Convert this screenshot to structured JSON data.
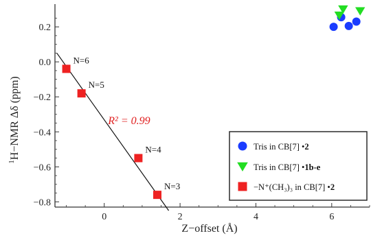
{
  "chart_data": {
    "type": "scatter",
    "xlabel": "Z−offset (Å)",
    "ylabel_prefix": "1",
    "ylabel_main": "H−NMR Δδ (ppm)",
    "xlim": [
      -1.3,
      7.0
    ],
    "ylim": [
      -0.83,
      0.33
    ],
    "x_ticks": [
      0,
      2,
      4,
      6
    ],
    "y_ticks": [
      0.2,
      0.0,
      -0.2,
      -0.4,
      -0.6,
      -0.8
    ],
    "x_tick_labels": [
      "0",
      "2",
      "4",
      "6"
    ],
    "y_tick_labels": [
      "0.2",
      "0.0",
      "−0.2",
      "−0.4",
      "−0.6",
      "−0.8"
    ],
    "grid": false,
    "legend_position": "bottom-right",
    "series": [
      {
        "name_main": "Tris in CB[7] •",
        "name_bold": "2",
        "marker": "circle",
        "color": "#1a3cff",
        "points": [
          [
            6.05,
            0.2
          ],
          [
            6.25,
            0.255
          ],
          [
            6.45,
            0.205
          ],
          [
            6.65,
            0.23
          ]
        ]
      },
      {
        "name_main": "Tris in CB[7] •",
        "name_bold": "1b-e",
        "marker": "triangle-down",
        "color": "#22dd22",
        "points": [
          [
            6.2,
            0.265
          ],
          [
            6.3,
            0.3
          ],
          [
            6.75,
            0.29
          ]
        ]
      },
      {
        "name_main": "−N⁺(CH₃)₃ in CB[7] •",
        "name_bold": "2",
        "marker": "square",
        "color": "#ee2222",
        "points": [
          [
            -1.0,
            -0.04
          ],
          [
            -0.6,
            -0.18
          ],
          [
            0.9,
            -0.55
          ],
          [
            1.4,
            -0.76
          ]
        ]
      }
    ],
    "point_labels": [
      {
        "x": -1.0,
        "y": -0.04,
        "text": "N=6"
      },
      {
        "x": -0.6,
        "y": -0.18,
        "text": "N=5"
      },
      {
        "x": 0.9,
        "y": -0.55,
        "text": "N=4"
      },
      {
        "x": 1.4,
        "y": -0.76,
        "text": "N=3"
      }
    ],
    "fit_line": {
      "x1": -1.25,
      "y1": 0.05,
      "x2": 1.7,
      "y2": -0.85
    },
    "r2_label": "R² = 0.99",
    "r2_at": {
      "x": 0.1,
      "y": -0.355
    }
  }
}
